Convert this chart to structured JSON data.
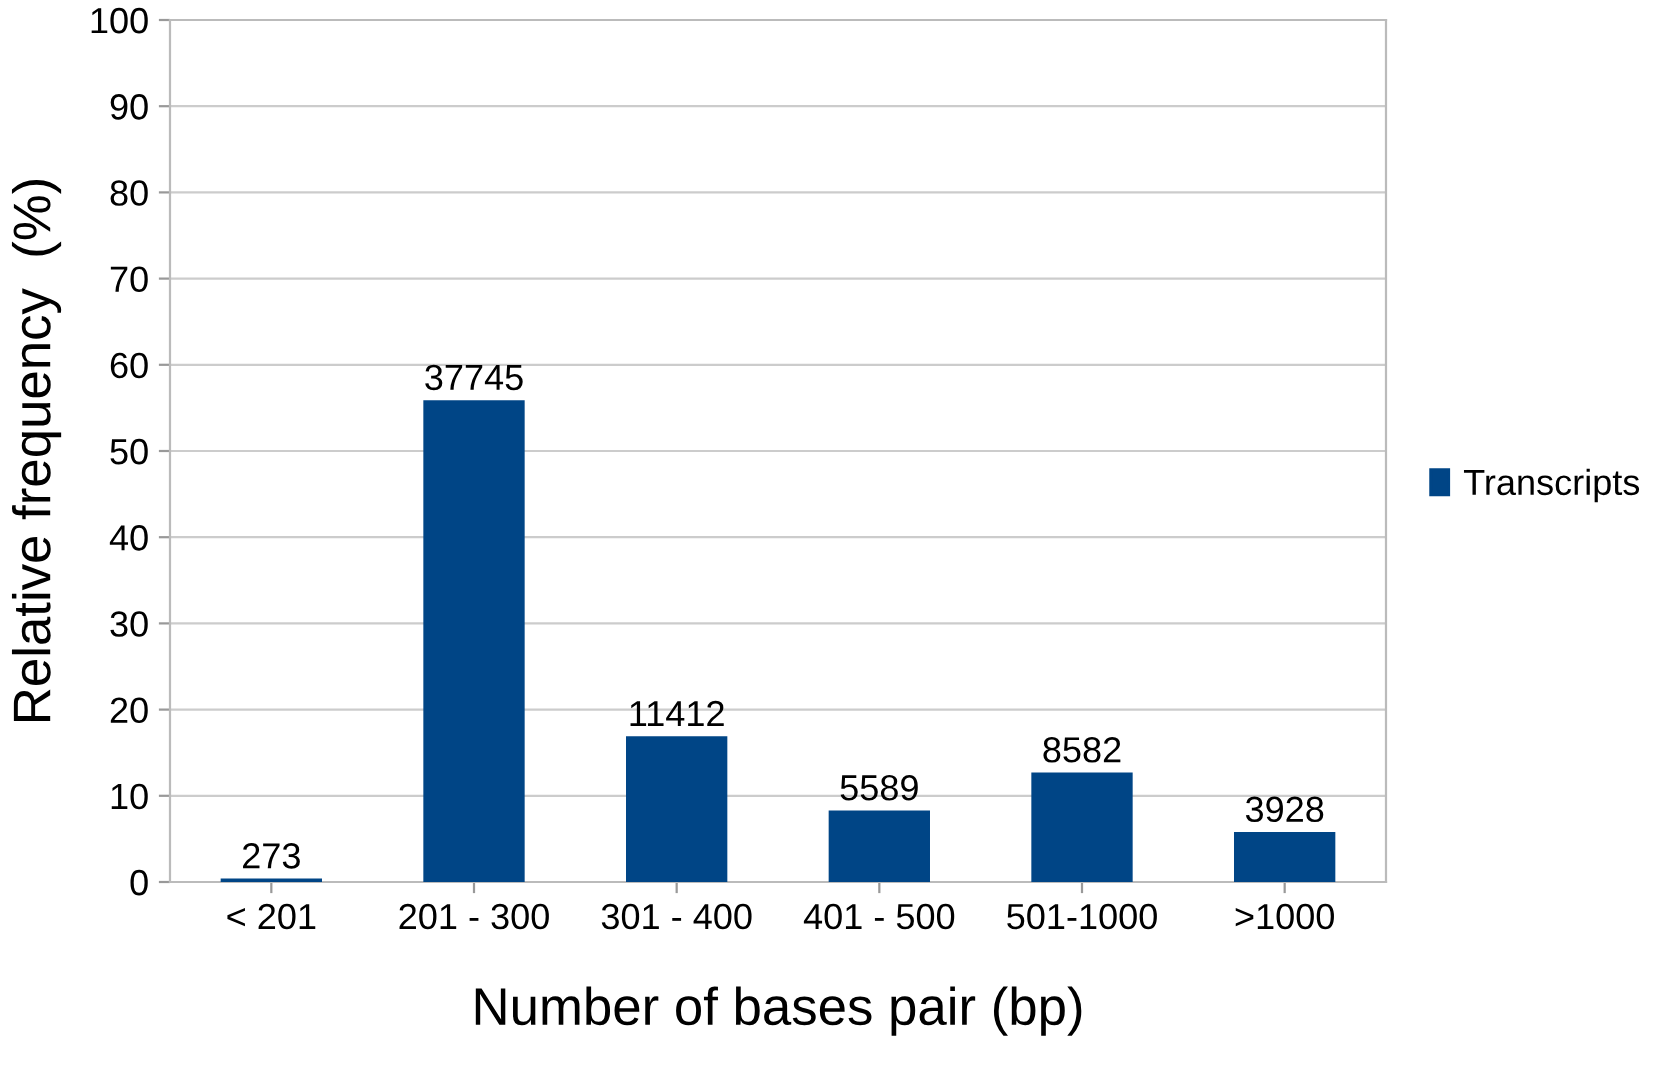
{
  "chart_data": {
    "type": "bar",
    "xlabel": "Number of bases pair (bp)",
    "ylabel": "Relative frequency  (%)",
    "categories": [
      "< 201",
      "201 - 300",
      "301 - 400",
      "401 - 500",
      "501-1000",
      ">1000"
    ],
    "series": [
      {
        "name": "Transcripts",
        "color": "#004586",
        "values": [
          0.4,
          55.9,
          16.9,
          8.3,
          12.7,
          5.8
        ]
      }
    ],
    "annotations": [
      {
        "text": "273",
        "x": "< 201",
        "y": 0.4
      },
      {
        "text": "37745",
        "x": "201 - 300",
        "y": 55.9
      },
      {
        "text": "11412",
        "x": "301 - 400",
        "y": 16.9
      },
      {
        "text": "5589",
        "x": "401 - 500",
        "y": 8.3
      },
      {
        "text": "8582",
        "x": "501-1000",
        "y": 12.7
      },
      {
        "text": "3928",
        "x": ">1000",
        "y": 5.8
      }
    ],
    "ylim": [
      0,
      100
    ],
    "yticks": [
      0,
      10,
      20,
      30,
      40,
      50,
      60,
      70,
      80,
      90,
      100
    ],
    "grid": "y",
    "legend": "right"
  }
}
